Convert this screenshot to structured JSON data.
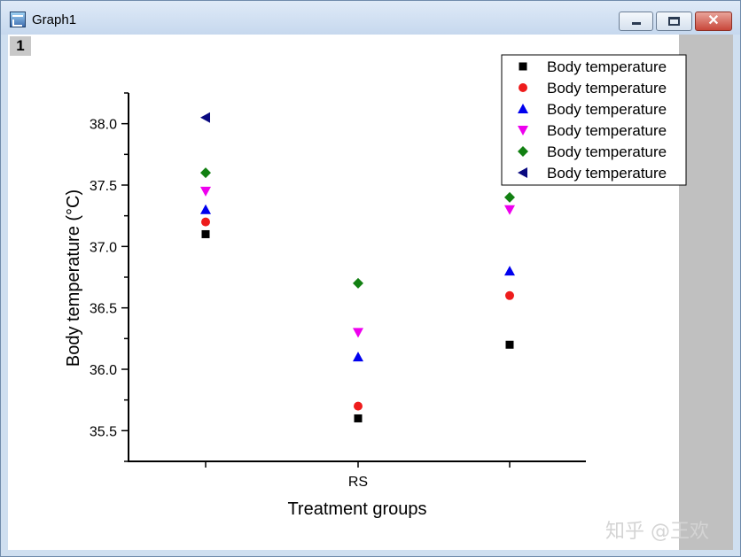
{
  "window": {
    "title": "Graph1",
    "layer_label": "1",
    "icons": {
      "app": "origin-graph-icon",
      "minimize": "minimize-icon",
      "maximize": "maximize-icon",
      "close": "close-icon"
    },
    "close_glyph": "✕"
  },
  "watermark": "知乎 @王欢",
  "chart_data": {
    "type": "scatter",
    "title": "",
    "xlabel": "Treatment groups",
    "ylabel": "Body temperature (°C)",
    "categories": [
      "",
      "RS",
      ""
    ],
    "ylim": [
      35.25,
      38.25
    ],
    "yticks": [
      35.5,
      36.0,
      36.5,
      37.0,
      37.5,
      38.0
    ],
    "ytick_labels": [
      "35.5",
      "36.0",
      "36.5",
      "37.0",
      "37.5",
      "38.0"
    ],
    "grid": false,
    "legend_position": "top-right",
    "series": [
      {
        "name": "Body temperature",
        "marker": "square",
        "color": "#000000",
        "values": [
          37.1,
          35.6,
          36.2
        ]
      },
      {
        "name": "Body temperature",
        "marker": "circle",
        "color": "#ee1c1c",
        "values": [
          37.2,
          35.7,
          36.6
        ]
      },
      {
        "name": "Body temperature",
        "marker": "triangle-up",
        "color": "#0000ee",
        "values": [
          37.3,
          36.1,
          36.8
        ]
      },
      {
        "name": "Body temperature",
        "marker": "triangle-down",
        "color": "#ee00ee",
        "values": [
          37.45,
          36.3,
          37.3
        ]
      },
      {
        "name": "Body temperature",
        "marker": "diamond",
        "color": "#128012",
        "values": [
          37.6,
          36.7,
          37.4
        ]
      },
      {
        "name": "Body temperature",
        "marker": "triangle-left",
        "color": "#0a0a80",
        "values": [
          38.05,
          null,
          null
        ]
      }
    ]
  }
}
